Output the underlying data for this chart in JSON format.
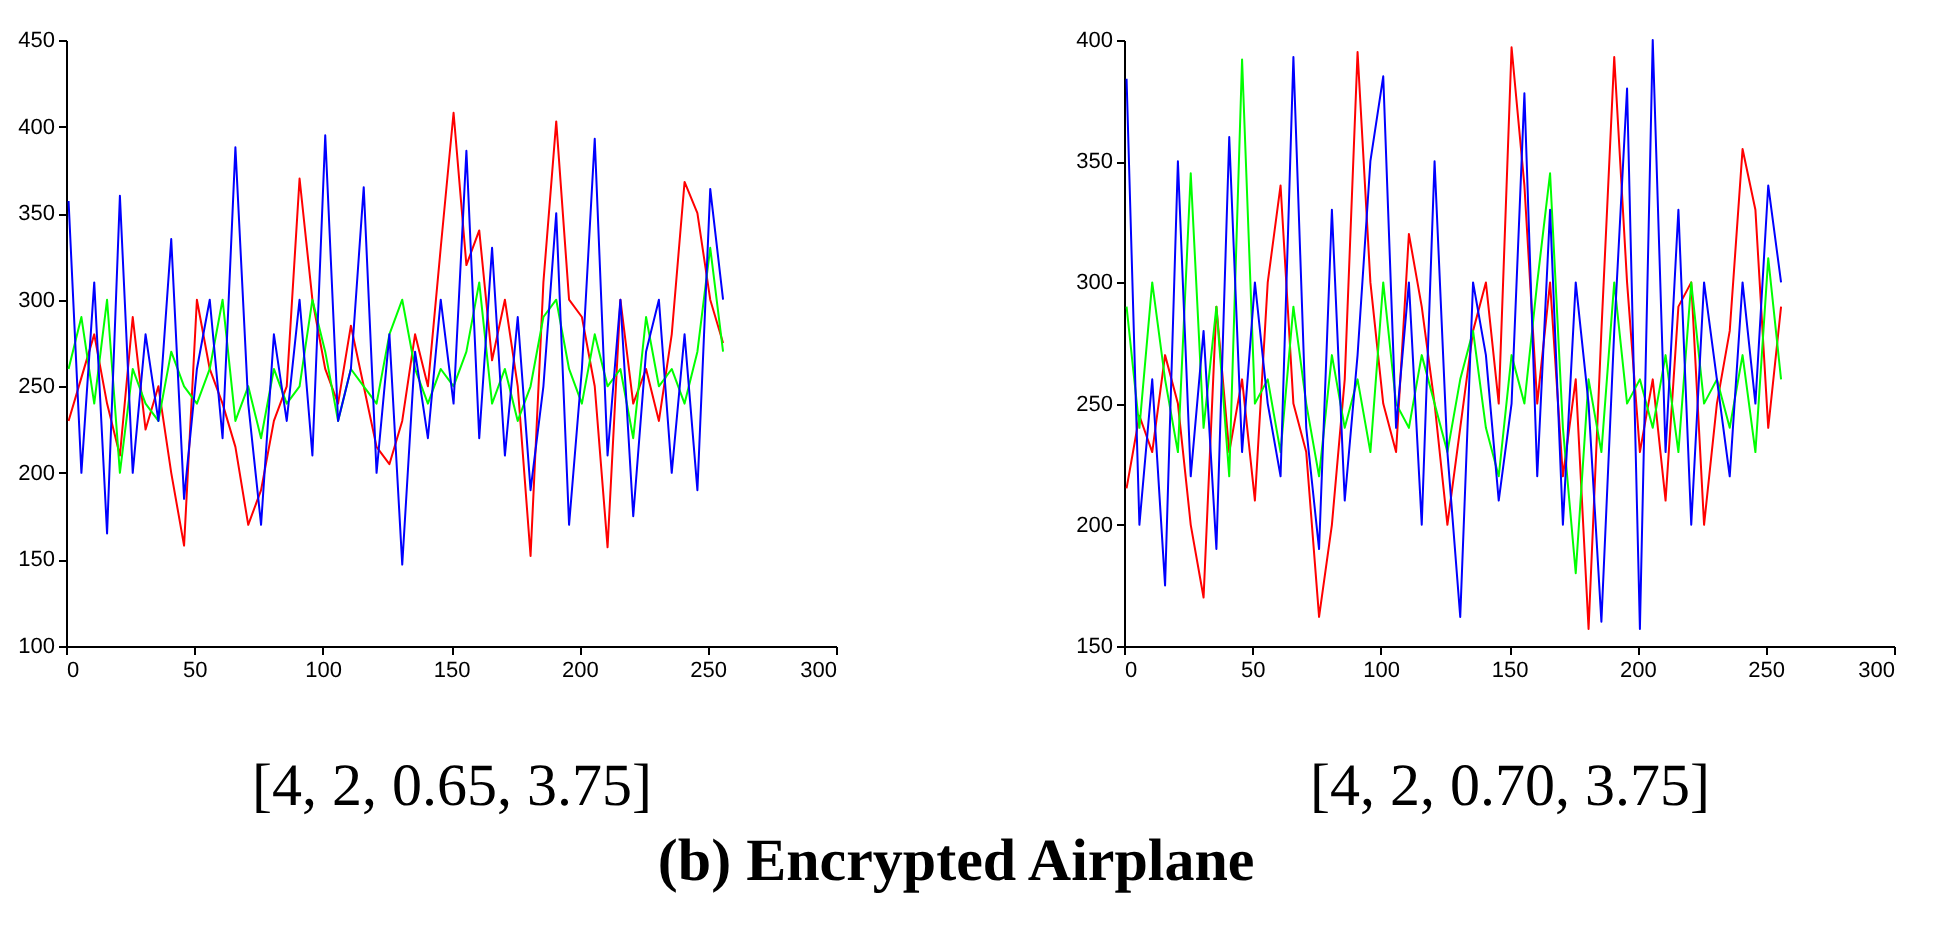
{
  "chart_data": [
    {
      "type": "line",
      "title": "(b) Encrypted Airplane",
      "xlabel": "[4,  2,  0.65,  3.75]",
      "x": [
        1,
        6,
        11,
        16,
        21,
        26,
        31,
        36,
        41,
        46,
        51,
        56,
        61,
        66,
        71,
        76,
        81,
        86,
        91,
        96,
        101,
        106,
        111,
        116,
        121,
        126,
        131,
        136,
        141,
        146,
        151,
        156,
        161,
        166,
        171,
        176,
        181,
        186,
        191,
        196,
        201,
        206,
        211,
        216,
        221,
        226,
        231,
        236,
        241,
        246,
        251,
        256
      ],
      "series": [
        {
          "color": "#ff0000",
          "values": [
            230,
            255,
            280,
            240,
            210,
            290,
            225,
            250,
            200,
            158,
            300,
            260,
            240,
            215,
            170,
            190,
            230,
            250,
            370,
            300,
            260,
            240,
            285,
            250,
            215,
            205,
            230,
            280,
            250,
            330,
            408,
            320,
            340,
            265,
            300,
            250,
            152,
            310,
            403,
            300,
            290,
            250,
            157,
            300,
            240,
            260,
            230,
            280,
            368,
            350,
            300,
            275
          ]
        },
        {
          "color": "#00ff00",
          "values": [
            260,
            290,
            240,
            300,
            200,
            260,
            240,
            230,
            270,
            250,
            240,
            260,
            300,
            230,
            250,
            220,
            260,
            240,
            250,
            300,
            270,
            230,
            260,
            250,
            240,
            280,
            300,
            260,
            240,
            260,
            250,
            270,
            310,
            240,
            260,
            230,
            250,
            290,
            300,
            260,
            240,
            280,
            250,
            260,
            220,
            290,
            250,
            260,
            240,
            270,
            330,
            270
          ]
        },
        {
          "color": "#0000ff",
          "values": [
            357,
            200,
            310,
            165,
            360,
            200,
            280,
            230,
            335,
            185,
            260,
            300,
            220,
            388,
            240,
            170,
            280,
            230,
            300,
            210,
            395,
            230,
            260,
            365,
            200,
            280,
            147,
            270,
            220,
            300,
            240,
            386,
            220,
            330,
            210,
            290,
            190,
            250,
            350,
            170,
            260,
            393,
            210,
            300,
            175,
            270,
            300,
            200,
            280,
            190,
            364,
            300
          ]
        }
      ],
      "xlim": [
        0,
        300
      ],
      "xticks": [
        0,
        50,
        100,
        150,
        200,
        250,
        300
      ],
      "ylim": [
        100,
        450
      ],
      "yticks": [
        100,
        150,
        200,
        250,
        300,
        350,
        400,
        450
      ],
      "grid": false,
      "legend": false
    },
    {
      "type": "line",
      "xlabel": "[4,  2,  0.70,  3.75]",
      "x": [
        1,
        6,
        11,
        16,
        21,
        26,
        31,
        36,
        41,
        46,
        51,
        56,
        61,
        66,
        71,
        76,
        81,
        86,
        91,
        96,
        101,
        106,
        111,
        116,
        121,
        126,
        131,
        136,
        141,
        146,
        151,
        156,
        161,
        166,
        171,
        176,
        181,
        186,
        191,
        196,
        201,
        206,
        211,
        216,
        221,
        226,
        231,
        236,
        241,
        246,
        251,
        256
      ],
      "series": [
        {
          "color": "#ff0000",
          "values": [
            215,
            245,
            230,
            270,
            250,
            200,
            170,
            290,
            230,
            260,
            210,
            300,
            340,
            250,
            230,
            162,
            200,
            260,
            395,
            300,
            250,
            230,
            320,
            290,
            250,
            200,
            240,
            280,
            300,
            250,
            397,
            340,
            250,
            300,
            220,
            260,
            157,
            280,
            393,
            300,
            230,
            260,
            210,
            290,
            300,
            200,
            250,
            280,
            355,
            330,
            240,
            290
          ]
        },
        {
          "color": "#00ff00",
          "values": [
            290,
            240,
            300,
            260,
            230,
            345,
            240,
            290,
            220,
            392,
            250,
            260,
            230,
            290,
            250,
            220,
            270,
            240,
            260,
            230,
            300,
            250,
            240,
            270,
            250,
            230,
            260,
            280,
            240,
            220,
            270,
            250,
            300,
            345,
            240,
            180,
            260,
            230,
            300,
            250,
            260,
            240,
            270,
            230,
            300,
            250,
            260,
            240,
            270,
            230,
            310,
            260
          ]
        },
        {
          "color": "#0000ff",
          "values": [
            384,
            200,
            260,
            175,
            350,
            220,
            280,
            190,
            360,
            230,
            300,
            250,
            220,
            393,
            240,
            190,
            330,
            210,
            270,
            350,
            385,
            240,
            300,
            200,
            350,
            230,
            162,
            300,
            270,
            210,
            250,
            378,
            220,
            330,
            200,
            300,
            250,
            160,
            280,
            380,
            157,
            400,
            230,
            330,
            200,
            300,
            260,
            220,
            300,
            250,
            340,
            300
          ]
        }
      ],
      "xlim": [
        0,
        300
      ],
      "xticks": [
        0,
        50,
        100,
        150,
        200,
        250,
        300
      ],
      "ylim": [
        150,
        400
      ],
      "yticks": [
        150,
        200,
        250,
        300,
        350,
        400
      ],
      "grid": false,
      "legend": false
    }
  ]
}
